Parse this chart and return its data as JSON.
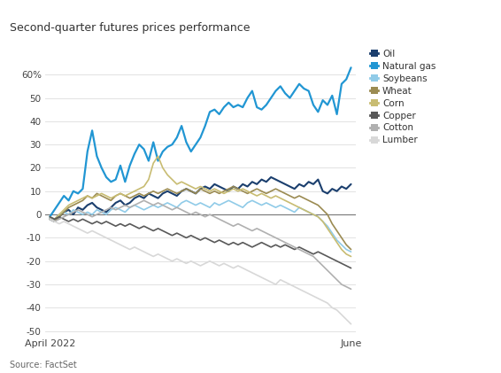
{
  "title": "Second-quarter futures prices performance",
  "source": "Source: FactSet",
  "bg_color": "#ffffff",
  "ylim": [
    -52,
    68
  ],
  "ytick_vals": [
    -50,
    -40,
    -30,
    -20,
    -10,
    0,
    10,
    20,
    30,
    40,
    50,
    60
  ],
  "ytick_labels": [
    "-50",
    "-40",
    "-30",
    "-20",
    "-10",
    "0",
    "10",
    "20",
    "30",
    "40",
    "50",
    "60%"
  ],
  "n_points": 65,
  "xtick_positions": [
    0,
    32,
    64
  ],
  "xtick_labels": [
    "April 2022",
    "",
    "June"
  ],
  "series": {
    "Oil": {
      "color": "#1b3f6e",
      "lw": 1.5,
      "values": [
        -2,
        -3,
        -1,
        1,
        2,
        0,
        3,
        2,
        4,
        5,
        3,
        2,
        1,
        3,
        5,
        6,
        4,
        5,
        7,
        8,
        7,
        9,
        8,
        7,
        9,
        10,
        9,
        8,
        10,
        11,
        10,
        9,
        11,
        12,
        11,
        13,
        12,
        11,
        10,
        12,
        11,
        13,
        12,
        14,
        13,
        15,
        14,
        16,
        15,
        14,
        13,
        12,
        11,
        13,
        12,
        14,
        13,
        15,
        10,
        9,
        11,
        10,
        12,
        11,
        13
      ]
    },
    "Natural gas": {
      "color": "#2196d3",
      "lw": 1.6,
      "values": [
        -1,
        2,
        5,
        8,
        6,
        10,
        9,
        11,
        27,
        36,
        25,
        20,
        16,
        14,
        15,
        21,
        14,
        21,
        26,
        30,
        28,
        23,
        31,
        23,
        27,
        29,
        30,
        33,
        38,
        31,
        27,
        30,
        33,
        38,
        44,
        45,
        43,
        46,
        48,
        46,
        47,
        46,
        50,
        53,
        46,
        45,
        47,
        50,
        53,
        55,
        52,
        50,
        53,
        56,
        54,
        53,
        47,
        44,
        49,
        47,
        51,
        43,
        56,
        58,
        63
      ]
    },
    "Soybeans": {
      "color": "#90cbe8",
      "lw": 1.2,
      "values": [
        -1,
        -2,
        0,
        1,
        0,
        2,
        1,
        0,
        1,
        0,
        2,
        1,
        0,
        2,
        3,
        2,
        1,
        3,
        4,
        3,
        2,
        3,
        4,
        3,
        4,
        5,
        4,
        3,
        5,
        6,
        5,
        4,
        5,
        4,
        3,
        5,
        4,
        5,
        6,
        5,
        4,
        3,
        5,
        6,
        5,
        4,
        5,
        4,
        3,
        4,
        3,
        2,
        1,
        3,
        2,
        1,
        0,
        -1,
        -3,
        -5,
        -8,
        -11,
        -13,
        -15,
        -16
      ]
    },
    "Wheat": {
      "color": "#9b8b52",
      "lw": 1.2,
      "values": [
        -2,
        -3,
        -1,
        1,
        3,
        4,
        5,
        6,
        8,
        7,
        9,
        8,
        7,
        6,
        8,
        9,
        8,
        7,
        8,
        9,
        8,
        9,
        10,
        9,
        10,
        11,
        10,
        9,
        10,
        11,
        10,
        9,
        11,
        10,
        9,
        10,
        9,
        10,
        11,
        12,
        11,
        10,
        9,
        10,
        11,
        10,
        9,
        10,
        11,
        10,
        9,
        8,
        7,
        8,
        7,
        6,
        5,
        4,
        2,
        0,
        -4,
        -7,
        -10,
        -13,
        -15
      ]
    },
    "Corn": {
      "color": "#c8bc72",
      "lw": 1.2,
      "values": [
        -1,
        -2,
        0,
        2,
        4,
        5,
        6,
        7,
        8,
        7,
        8,
        9,
        8,
        7,
        8,
        9,
        8,
        9,
        10,
        11,
        12,
        15,
        22,
        25,
        20,
        17,
        15,
        13,
        14,
        13,
        12,
        11,
        12,
        11,
        10,
        11,
        10,
        9,
        10,
        11,
        10,
        11,
        10,
        9,
        8,
        9,
        8,
        7,
        8,
        7,
        6,
        5,
        4,
        3,
        2,
        1,
        0,
        -1,
        -3,
        -6,
        -9,
        -12,
        -15,
        -17,
        -18
      ]
    },
    "Copper": {
      "color": "#595959",
      "lw": 1.2,
      "values": [
        -1,
        -2,
        -1,
        -2,
        -3,
        -2,
        -3,
        -2,
        -3,
        -4,
        -3,
        -4,
        -3,
        -4,
        -5,
        -4,
        -5,
        -4,
        -5,
        -6,
        -5,
        -6,
        -7,
        -6,
        -7,
        -8,
        -9,
        -8,
        -9,
        -10,
        -9,
        -10,
        -11,
        -10,
        -11,
        -12,
        -11,
        -12,
        -13,
        -12,
        -13,
        -12,
        -13,
        -14,
        -13,
        -12,
        -13,
        -14,
        -13,
        -14,
        -13,
        -14,
        -15,
        -14,
        -15,
        -16,
        -17,
        -16,
        -17,
        -18,
        -19,
        -20,
        -21,
        -22,
        -23
      ]
    },
    "Cotton": {
      "color": "#b0b0b0",
      "lw": 1.2,
      "values": [
        -2,
        -3,
        -2,
        -1,
        0,
        1,
        2,
        1,
        0,
        -1,
        0,
        1,
        2,
        3,
        2,
        3,
        4,
        3,
        4,
        5,
        6,
        5,
        4,
        5,
        4,
        3,
        2,
        3,
        2,
        1,
        0,
        1,
        0,
        -1,
        0,
        -1,
        -2,
        -3,
        -4,
        -5,
        -4,
        -5,
        -6,
        -7,
        -6,
        -7,
        -8,
        -9,
        -10,
        -11,
        -12,
        -13,
        -14,
        -15,
        -16,
        -17,
        -18,
        -20,
        -22,
        -24,
        -26,
        -28,
        -30,
        -31,
        -32
      ]
    },
    "Lumber": {
      "color": "#d8d8d8",
      "lw": 1.2,
      "values": [
        -2,
        -3,
        -4,
        -3,
        -4,
        -5,
        -6,
        -7,
        -8,
        -7,
        -8,
        -9,
        -10,
        -11,
        -12,
        -13,
        -14,
        -15,
        -14,
        -15,
        -16,
        -17,
        -18,
        -17,
        -18,
        -19,
        -20,
        -19,
        -20,
        -21,
        -20,
        -21,
        -22,
        -21,
        -20,
        -21,
        -22,
        -21,
        -22,
        -23,
        -22,
        -23,
        -24,
        -25,
        -26,
        -27,
        -28,
        -29,
        -30,
        -28,
        -29,
        -30,
        -31,
        -32,
        -33,
        -34,
        -35,
        -36,
        -37,
        -38,
        -40,
        -41,
        -43,
        -45,
        -47
      ]
    }
  }
}
